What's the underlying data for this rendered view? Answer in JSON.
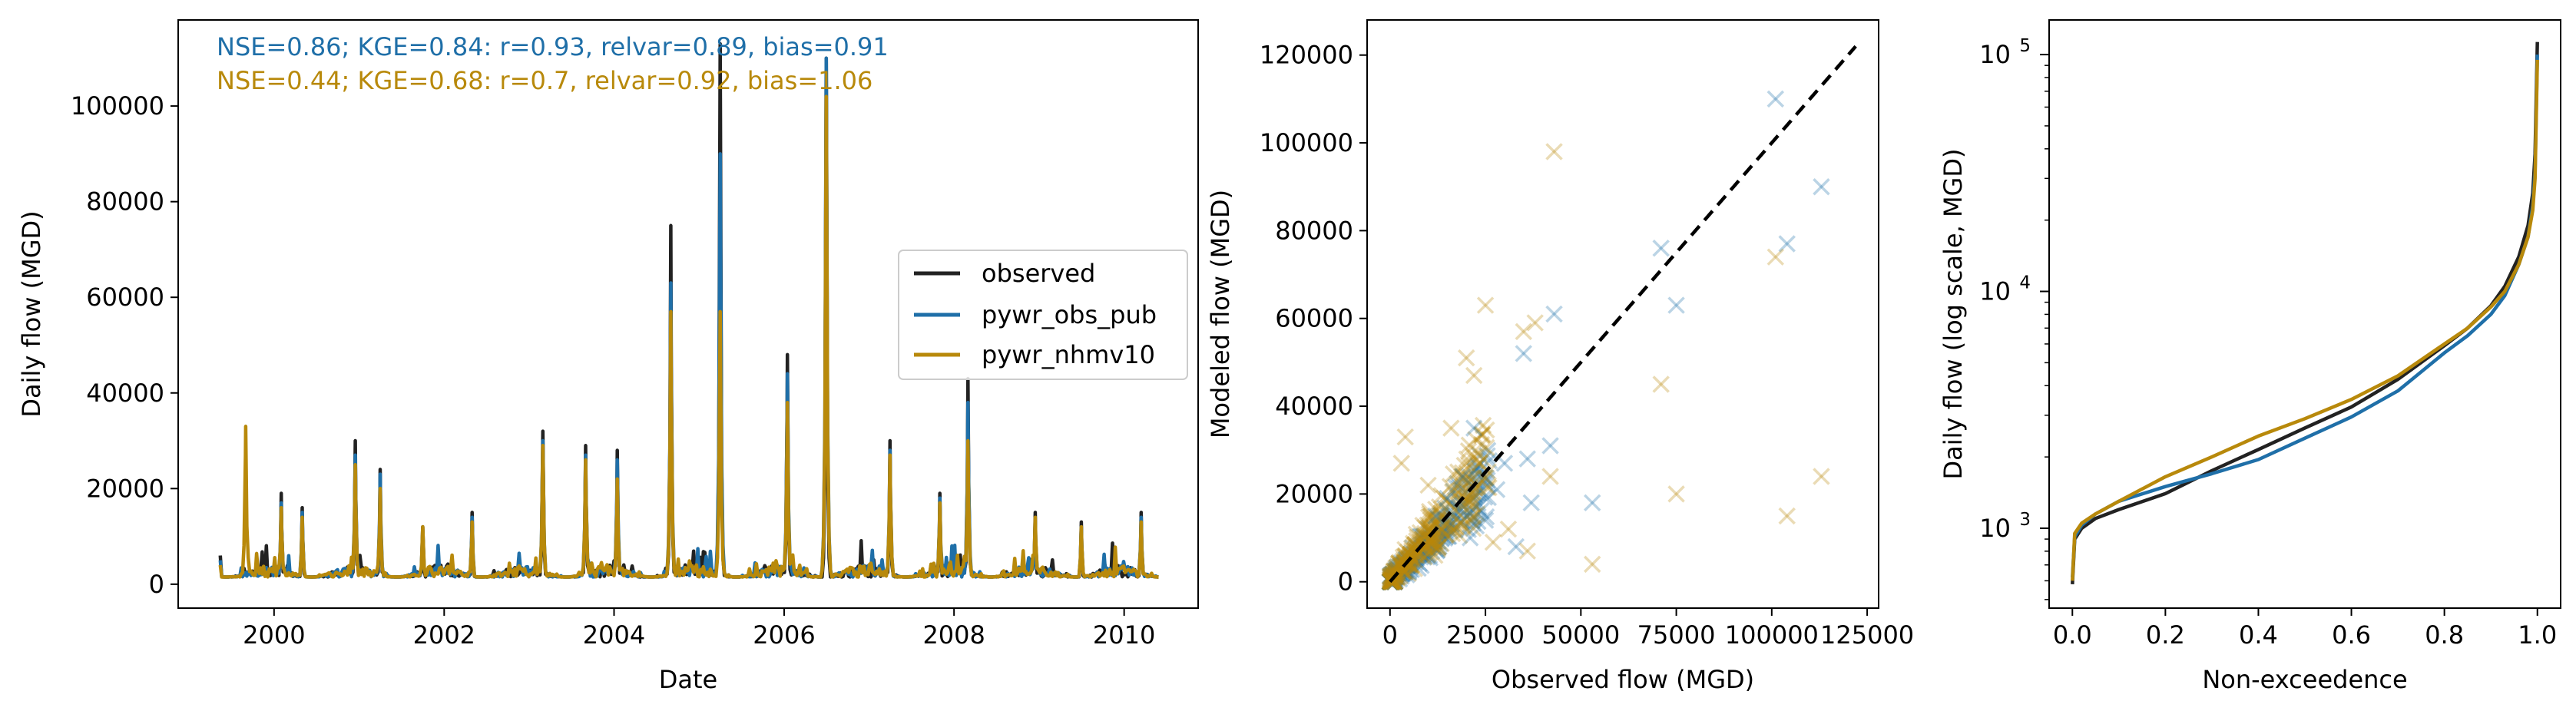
{
  "colors": {
    "observed": "#222222",
    "obs_pub": "#1f6fa8",
    "nhmv10": "#b8890b"
  },
  "chart_data": [
    {
      "type": "line",
      "xlabel": "Date",
      "ylabel": "Daily flow (MGD)",
      "xlim": [
        "1998-11-15",
        "2010-11-15"
      ],
      "ylim": [
        -5000,
        118000
      ],
      "x_ticks": [
        "2000-01-01",
        "2002-01-01",
        "2004-01-01",
        "2006-01-01",
        "2008-01-01",
        "2010-01-01"
      ],
      "x_tick_labels": [
        "2000",
        "2002",
        "2004",
        "2006",
        "2008",
        "2010"
      ],
      "y_ticks": [
        0,
        20000,
        40000,
        60000,
        80000,
        100000
      ],
      "y_tick_labels": [
        "0",
        "20000",
        "40000",
        "60000",
        "80000",
        "100000"
      ],
      "annotations": [
        "NSE=0.86; KGE=0.84: r=0.93, relvar=0.89, bias=0.91",
        "NSE=0.44; KGE=0.68: r=0.7, relvar=0.92, bias=1.06"
      ],
      "legend": {
        "position": "center-right",
        "entries": [
          "observed",
          "pywr_obs_pub",
          "pywr_nhmv10"
        ]
      },
      "series": [
        {
          "name": "observed",
          "x": [
            "1999-05-15",
            "1999-09-01",
            "2000-02-01",
            "2000-05-01",
            "2000-12-15",
            "2001-04-01",
            "2001-10-01",
            "2002-05-01",
            "2003-03-01",
            "2003-09-01",
            "2004-01-15",
            "2004-09-01",
            "2005-04-01",
            "2006-01-15",
            "2006-07-01",
            "2007-04-01",
            "2007-11-01",
            "2008-03-01",
            "2008-12-15",
            "2009-07-01",
            "2010-03-15"
          ],
          "y": [
            6000,
            2000,
            19000,
            16000,
            30000,
            24000,
            12000,
            15000,
            32000,
            29000,
            28000,
            75000,
            113000,
            48000,
            110000,
            30000,
            19000,
            43000,
            15000,
            13000,
            15000
          ]
        },
        {
          "name": "pywr_obs_pub",
          "x": [
            "1999-05-15",
            "1999-09-01",
            "2000-02-01",
            "2000-05-01",
            "2000-12-15",
            "2001-04-01",
            "2001-10-01",
            "2002-05-01",
            "2003-03-01",
            "2003-09-01",
            "2004-01-15",
            "2004-09-01",
            "2005-04-01",
            "2006-01-15",
            "2006-07-01",
            "2007-04-01",
            "2007-11-01",
            "2008-03-01",
            "2008-12-15",
            "2009-07-01",
            "2010-03-15"
          ],
          "y": [
            5000,
            2000,
            17000,
            15000,
            27000,
            23000,
            11000,
            14000,
            30000,
            27000,
            26000,
            63000,
            90000,
            44000,
            110000,
            28000,
            18000,
            38000,
            13000,
            12000,
            14000
          ]
        },
        {
          "name": "pywr_nhmv10",
          "x": [
            "1999-05-15",
            "1999-09-01",
            "2000-02-01",
            "2000-05-01",
            "2000-12-15",
            "2001-04-01",
            "2001-10-01",
            "2002-05-01",
            "2003-03-01",
            "2003-09-01",
            "2004-01-15",
            "2004-09-01",
            "2005-04-01",
            "2006-01-15",
            "2006-07-01",
            "2007-04-01",
            "2007-11-01",
            "2008-03-01",
            "2008-12-15",
            "2009-07-01",
            "2010-03-15"
          ],
          "y": [
            4000,
            33000,
            16000,
            14000,
            25000,
            20000,
            12000,
            13000,
            29000,
            26000,
            22000,
            57000,
            57000,
            38000,
            102000,
            27000,
            17000,
            30000,
            14000,
            12000,
            13000
          ]
        }
      ]
    },
    {
      "type": "scatter",
      "xlabel": "Observed flow (MGD)",
      "ylabel": "Modeled flow (MGD)",
      "xlim": [
        -6000,
        128000
      ],
      "ylim": [
        -6000,
        128000
      ],
      "x_ticks": [
        0,
        25000,
        50000,
        75000,
        100000,
        125000
      ],
      "x_tick_labels": [
        "0",
        "25000",
        "50000",
        "75000",
        "100000",
        "125000"
      ],
      "y_ticks": [
        0,
        20000,
        40000,
        60000,
        80000,
        100000,
        120000
      ],
      "y_tick_labels": [
        "0",
        "20000",
        "40000",
        "60000",
        "80000",
        "100000",
        "120000"
      ],
      "one_to_one": [
        [
          0,
          0
        ],
        [
          122000,
          122000
        ]
      ],
      "series": [
        {
          "name": "pywr_obs_pub",
          "x": [
            101000,
            113000,
            104000,
            71000,
            75000,
            43000,
            35000,
            36000,
            53000,
            42000,
            30000,
            22000,
            28000,
            37000,
            19000,
            25000,
            33000,
            15000,
            12000,
            21000
          ],
          "y": [
            110000,
            90000,
            77000,
            76000,
            63000,
            61000,
            52000,
            28000,
            18000,
            31000,
            27000,
            35000,
            21000,
            18000,
            24000,
            14000,
            8000,
            19000,
            15000,
            10000
          ]
        },
        {
          "name": "pywr_nhmv10",
          "x": [
            43000,
            101000,
            113000,
            104000,
            71000,
            75000,
            53000,
            38000,
            25000,
            20000,
            35000,
            4000,
            3000,
            42000,
            22000,
            31000,
            27000,
            10000,
            16000,
            36000
          ],
          "y": [
            98000,
            74000,
            24000,
            15000,
            45000,
            20000,
            4000,
            59000,
            63000,
            51000,
            57000,
            33000,
            27000,
            24000,
            47000,
            12000,
            9000,
            22000,
            35000,
            7000
          ]
        }
      ]
    },
    {
      "type": "line",
      "xlabel": "Non-exceedence",
      "ylabel": "Daily flow (log scale, MGD)",
      "yscale": "log",
      "xlim": [
        -0.05,
        1.05
      ],
      "ylim": [
        460,
        140000
      ],
      "x_ticks": [
        0.0,
        0.2,
        0.4,
        0.6,
        0.8,
        1.0
      ],
      "x_tick_labels": [
        "0.0",
        "0.2",
        "0.4",
        "0.6",
        "0.8",
        "1.0"
      ],
      "y_ticks": [
        1000,
        10000,
        100000
      ],
      "y_tick_base": "10",
      "y_tick_exponents": [
        "3",
        "4",
        "5"
      ],
      "series": [
        {
          "name": "observed",
          "x": [
            0,
            0.005,
            0.02,
            0.05,
            0.1,
            0.2,
            0.3,
            0.4,
            0.5,
            0.6,
            0.7,
            0.8,
            0.85,
            0.9,
            0.93,
            0.96,
            0.98,
            0.99,
            0.995,
            1.0
          ],
          "y": [
            580,
            900,
            1000,
            1100,
            1200,
            1400,
            1750,
            2150,
            2650,
            3250,
            4250,
            5900,
            7000,
            8700,
            10500,
            14000,
            19000,
            26000,
            38000,
            113000
          ]
        },
        {
          "name": "pywr_obs_pub",
          "x": [
            0,
            0.005,
            0.02,
            0.05,
            0.1,
            0.2,
            0.3,
            0.4,
            0.5,
            0.6,
            0.7,
            0.8,
            0.85,
            0.9,
            0.93,
            0.96,
            0.98,
            0.99,
            0.995,
            1.0
          ],
          "y": [
            620,
            920,
            1030,
            1150,
            1300,
            1500,
            1700,
            1950,
            2400,
            2950,
            3800,
            5500,
            6500,
            8000,
            9600,
            13000,
            17000,
            23000,
            32000,
            100000
          ]
        },
        {
          "name": "pywr_nhmv10",
          "x": [
            0,
            0.005,
            0.02,
            0.05,
            0.1,
            0.2,
            0.3,
            0.4,
            0.5,
            0.6,
            0.7,
            0.8,
            0.85,
            0.9,
            0.93,
            0.96,
            0.98,
            0.99,
            0.995,
            1.0
          ],
          "y": [
            600,
            950,
            1050,
            1150,
            1300,
            1650,
            2000,
            2450,
            2900,
            3500,
            4400,
            6000,
            7000,
            8600,
            10000,
            13000,
            17000,
            22000,
            30000,
            95000
          ]
        }
      ]
    }
  ]
}
